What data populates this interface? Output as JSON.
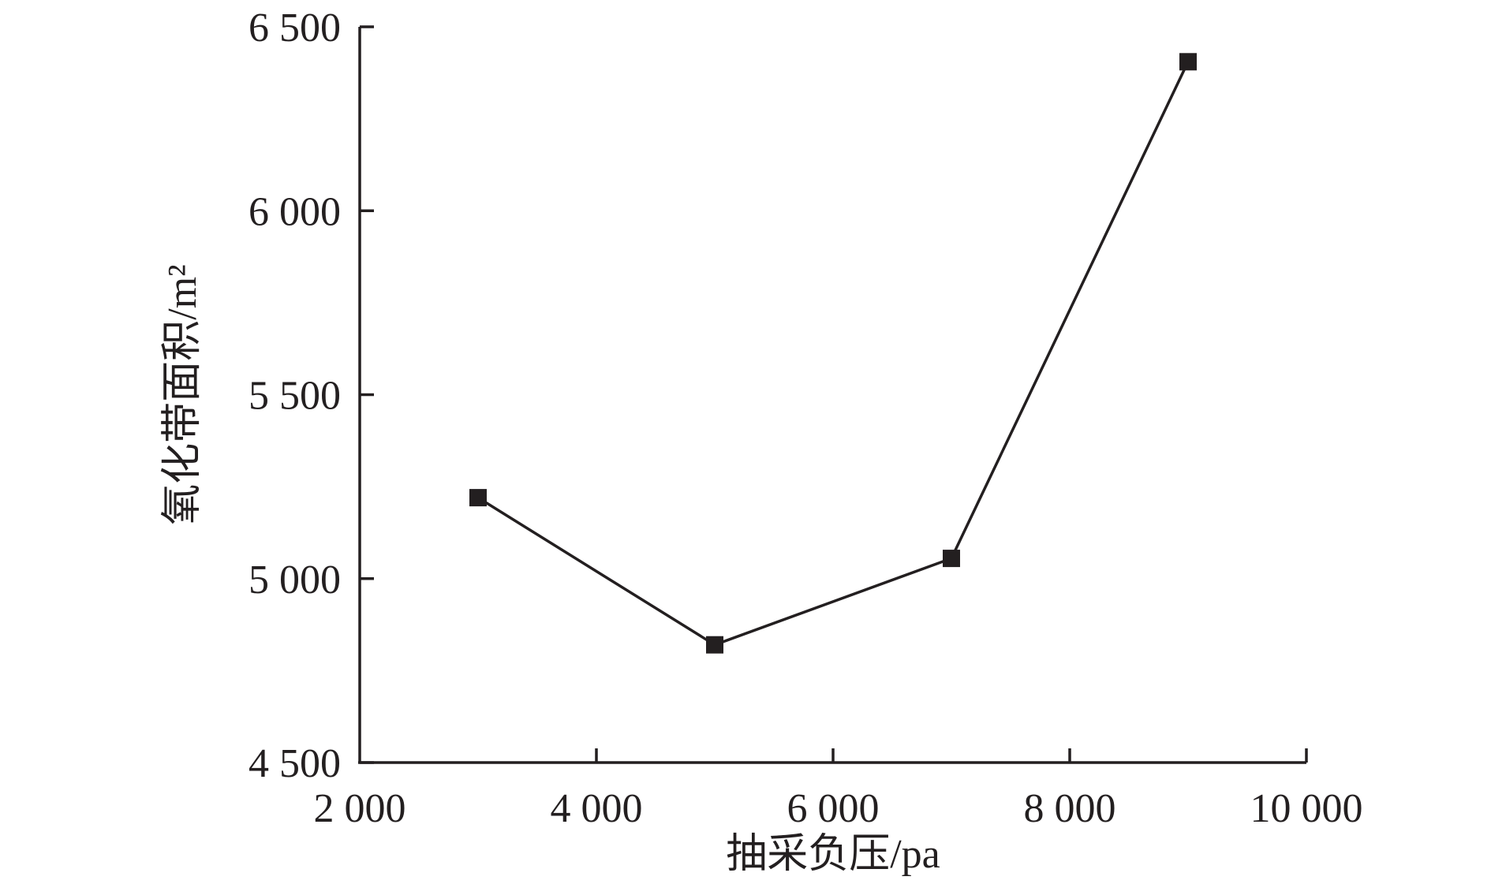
{
  "chart_data": {
    "type": "line",
    "title": "",
    "xlabel": "抽采负压/pa",
    "ylabel": "氧化带面积/m²",
    "xlim": [
      2000,
      10000
    ],
    "ylim": [
      4500,
      6500
    ],
    "x_ticks": [
      2000,
      4000,
      6000,
      8000,
      10000
    ],
    "x_tick_labels": [
      "2 000",
      "4 000",
      "6 000",
      "8 000",
      "10 000"
    ],
    "y_ticks": [
      4500,
      5000,
      5500,
      6000,
      6500
    ],
    "y_tick_labels": [
      "4 500",
      "5 000",
      "5 500",
      "6 000",
      "6 500"
    ],
    "grid": false,
    "series": [
      {
        "marker": "square",
        "color": "#231f20",
        "x": [
          3000,
          5000,
          7000,
          9000
        ],
        "y": [
          5220,
          4820,
          5055,
          6405
        ]
      }
    ]
  }
}
